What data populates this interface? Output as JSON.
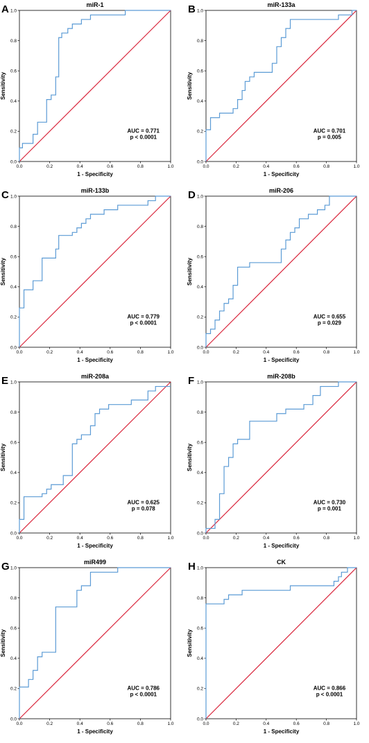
{
  "chart_data": [
    {
      "panel": "A",
      "type": "line",
      "title": "miR-1",
      "xlabel": "1 - Specificity",
      "ylabel": "Sensitivity",
      "xlim": [
        0,
        1
      ],
      "ylim": [
        0,
        1
      ],
      "xticks": [
        "0.0",
        "0.2",
        "0.4",
        "0.6",
        "0.8",
        "1.0"
      ],
      "yticks": [
        "0.0",
        "0.2",
        "0.4",
        "0.6",
        "0.8",
        "1.0"
      ],
      "annotations": [
        "AUC = 0.771",
        "p < 0.0001"
      ],
      "series": [
        {
          "color": "#5b9bd5",
          "x": [
            0,
            0,
            0.02,
            0.02,
            0.09,
            0.09,
            0.12,
            0.12,
            0.18,
            0.18,
            0.21,
            0.21,
            0.24,
            0.24,
            0.26,
            0.26,
            0.28,
            0.28,
            0.32,
            0.32,
            0.35,
            0.35,
            0.41,
            0.41,
            0.47,
            0.47,
            0.52,
            0.52,
            0.7,
            0.7,
            1.0
          ],
          "y": [
            0,
            0.09,
            0.09,
            0.12,
            0.12,
            0.18,
            0.18,
            0.26,
            0.26,
            0.41,
            0.41,
            0.44,
            0.44,
            0.56,
            0.56,
            0.82,
            0.82,
            0.85,
            0.85,
            0.88,
            0.88,
            0.91,
            0.91,
            0.94,
            0.94,
            0.97,
            0.97,
            0.97,
            0.97,
            1.0,
            1.0
          ]
        },
        {
          "color": "#d9263c",
          "x": [
            0,
            1
          ],
          "y": [
            0,
            1
          ]
        }
      ]
    },
    {
      "panel": "B",
      "type": "line",
      "title": "miR-133a",
      "xlabel": "1 - Specificity",
      "ylabel": "Sensitivity",
      "xlim": [
        0,
        1
      ],
      "ylim": [
        0,
        1
      ],
      "xticks": [
        "0.0",
        "0.2",
        "0.4",
        "0.6",
        "0.8",
        "1.0"
      ],
      "yticks": [
        "0.0",
        "0.2",
        "0.4",
        "0.6",
        "0.8",
        "1.0"
      ],
      "annotations": [
        "AUC = 0.701",
        "p = 0.005"
      ],
      "series": [
        {
          "color": "#5b9bd5",
          "x": [
            0,
            0,
            0.03,
            0.03,
            0.09,
            0.09,
            0.18,
            0.18,
            0.21,
            0.21,
            0.24,
            0.24,
            0.26,
            0.26,
            0.29,
            0.29,
            0.32,
            0.32,
            0.35,
            0.35,
            0.44,
            0.44,
            0.47,
            0.47,
            0.5,
            0.5,
            0.53,
            0.53,
            0.56,
            0.56,
            0.88,
            0.88,
            0.97,
            0.97,
            1.0
          ],
          "y": [
            0,
            0.21,
            0.21,
            0.29,
            0.29,
            0.32,
            0.32,
            0.35,
            0.35,
            0.41,
            0.41,
            0.47,
            0.47,
            0.53,
            0.53,
            0.56,
            0.56,
            0.59,
            0.59,
            0.59,
            0.59,
            0.65,
            0.65,
            0.76,
            0.76,
            0.82,
            0.82,
            0.88,
            0.88,
            0.94,
            0.94,
            0.97,
            0.97,
            1.0,
            1.0
          ]
        },
        {
          "color": "#d9263c",
          "x": [
            0,
            1
          ],
          "y": [
            0,
            1
          ]
        }
      ]
    },
    {
      "panel": "C",
      "type": "line",
      "title": "miR-133b",
      "xlabel": "1 - Specificity",
      "ylabel": "Sensitivity",
      "xlim": [
        0,
        1
      ],
      "ylim": [
        0,
        1
      ],
      "xticks": [
        "0.0",
        "0.2",
        "0.4",
        "0.6",
        "0.8",
        "1.0"
      ],
      "yticks": [
        "0.0",
        "0.2",
        "0.4",
        "0.6",
        "0.8",
        "1.0"
      ],
      "annotations": [
        "AUC = 0.779",
        "p < 0.0001"
      ],
      "series": [
        {
          "color": "#5b9bd5",
          "x": [
            0,
            0,
            0.03,
            0.03,
            0.09,
            0.09,
            0.15,
            0.15,
            0.24,
            0.24,
            0.26,
            0.26,
            0.35,
            0.35,
            0.38,
            0.38,
            0.41,
            0.41,
            0.44,
            0.44,
            0.47,
            0.47,
            0.5,
            0.5,
            0.56,
            0.56,
            0.65,
            0.65,
            0.85,
            0.85,
            0.9,
            0.9,
            1.0
          ],
          "y": [
            0,
            0.26,
            0.26,
            0.38,
            0.38,
            0.44,
            0.44,
            0.59,
            0.59,
            0.65,
            0.65,
            0.74,
            0.74,
            0.76,
            0.76,
            0.79,
            0.79,
            0.82,
            0.82,
            0.85,
            0.85,
            0.88,
            0.88,
            0.88,
            0.88,
            0.91,
            0.91,
            0.94,
            0.94,
            0.97,
            0.97,
            1.0,
            1.0
          ]
        },
        {
          "color": "#d9263c",
          "x": [
            0,
            1
          ],
          "y": [
            0,
            1
          ]
        }
      ]
    },
    {
      "panel": "D",
      "type": "line",
      "title": "miR-206",
      "xlabel": "1 - Specificity",
      "ylabel": "Sensitivity",
      "xlim": [
        0,
        1
      ],
      "ylim": [
        0,
        1
      ],
      "xticks": [
        "0.0",
        "0.2",
        "0.4",
        "0.6",
        "0.8",
        "1.0"
      ],
      "yticks": [
        "0.0",
        "0.2",
        "0.4",
        "0.6",
        "0.8",
        "1.0"
      ],
      "annotations": [
        "AUC = 0.655",
        "p = 0.029"
      ],
      "series": [
        {
          "color": "#5b9bd5",
          "x": [
            0,
            0,
            0.03,
            0.03,
            0.06,
            0.06,
            0.09,
            0.09,
            0.12,
            0.12,
            0.15,
            0.15,
            0.18,
            0.18,
            0.21,
            0.21,
            0.29,
            0.29,
            0.5,
            0.5,
            0.53,
            0.53,
            0.56,
            0.56,
            0.59,
            0.59,
            0.62,
            0.62,
            0.68,
            0.68,
            0.74,
            0.74,
            0.79,
            0.79,
            0.82,
            0.82,
            1.0
          ],
          "y": [
            0,
            0.09,
            0.09,
            0.12,
            0.12,
            0.18,
            0.18,
            0.24,
            0.24,
            0.29,
            0.29,
            0.32,
            0.32,
            0.41,
            0.41,
            0.53,
            0.53,
            0.56,
            0.56,
            0.65,
            0.65,
            0.71,
            0.71,
            0.76,
            0.76,
            0.79,
            0.79,
            0.85,
            0.85,
            0.88,
            0.88,
            0.91,
            0.91,
            0.94,
            0.94,
            1.0,
            1.0
          ]
        },
        {
          "color": "#d9263c",
          "x": [
            0,
            1
          ],
          "y": [
            0,
            1
          ]
        }
      ]
    },
    {
      "panel": "E",
      "type": "line",
      "title": "miR-208a",
      "xlabel": "1 - Specificity",
      "ylabel": "Sensitivity",
      "xlim": [
        0,
        1
      ],
      "ylim": [
        0,
        1
      ],
      "xticks": [
        "0.0",
        "0.2",
        "0.4",
        "0.6",
        "0.8",
        "1.0"
      ],
      "yticks": [
        "0.0",
        "0.2",
        "0.4",
        "0.6",
        "0.8",
        "1.0"
      ],
      "annotations": [
        "AUC = 0.625",
        "p = 0.078"
      ],
      "series": [
        {
          "color": "#5b9bd5",
          "x": [
            0,
            0,
            0.03,
            0.03,
            0.15,
            0.15,
            0.18,
            0.18,
            0.21,
            0.21,
            0.29,
            0.29,
            0.35,
            0.35,
            0.38,
            0.38,
            0.41,
            0.41,
            0.47,
            0.47,
            0.5,
            0.5,
            0.53,
            0.53,
            0.56,
            0.56,
            0.59,
            0.59,
            0.74,
            0.74,
            0.85,
            0.85,
            0.9,
            0.9,
            1.0
          ],
          "y": [
            0,
            0.09,
            0.09,
            0.24,
            0.24,
            0.26,
            0.26,
            0.29,
            0.29,
            0.32,
            0.32,
            0.38,
            0.38,
            0.59,
            0.59,
            0.62,
            0.62,
            0.65,
            0.65,
            0.71,
            0.71,
            0.79,
            0.79,
            0.82,
            0.82,
            0.82,
            0.82,
            0.85,
            0.85,
            0.88,
            0.88,
            0.94,
            0.94,
            0.97,
            0.97
          ]
        },
        {
          "color": "#d9263c",
          "x": [
            0,
            1
          ],
          "y": [
            0,
            1
          ]
        }
      ]
    },
    {
      "panel": "F",
      "type": "line",
      "title": "miR-208b",
      "xlabel": "1 - Specificity",
      "ylabel": "Sensitivity",
      "xlim": [
        0,
        1
      ],
      "ylim": [
        0,
        1
      ],
      "xticks": [
        "0.0",
        "0.2",
        "0.4",
        "0.6",
        "0.8",
        "1.0"
      ],
      "yticks": [
        "0.0",
        "0.2",
        "0.4",
        "0.6",
        "0.8",
        "1.0"
      ],
      "annotations": [
        "AUC = 0.730",
        "p = 0.001"
      ],
      "series": [
        {
          "color": "#5b9bd5",
          "x": [
            0,
            0,
            0.06,
            0.06,
            0.09,
            0.09,
            0.12,
            0.12,
            0.15,
            0.15,
            0.18,
            0.18,
            0.21,
            0.21,
            0.29,
            0.29,
            0.47,
            0.47,
            0.53,
            0.53,
            0.65,
            0.65,
            0.71,
            0.71,
            0.76,
            0.76,
            0.88,
            0.88,
            1.0
          ],
          "y": [
            0,
            0.03,
            0.03,
            0.09,
            0.09,
            0.26,
            0.26,
            0.44,
            0.44,
            0.5,
            0.5,
            0.59,
            0.59,
            0.62,
            0.62,
            0.74,
            0.74,
            0.79,
            0.79,
            0.82,
            0.82,
            0.85,
            0.85,
            0.91,
            0.91,
            0.97,
            0.97,
            1.0,
            1.0
          ]
        },
        {
          "color": "#d9263c",
          "x": [
            0,
            1
          ],
          "y": [
            0,
            1
          ]
        }
      ]
    },
    {
      "panel": "G",
      "type": "line",
      "title": "miR499",
      "xlabel": "1 - Specificity",
      "ylabel": "Sensitivity",
      "xlim": [
        0,
        1
      ],
      "ylim": [
        0,
        1
      ],
      "xticks": [
        "0.0",
        "0.2",
        "0.4",
        "0.6",
        "0.8",
        "1.0"
      ],
      "yticks": [
        "0.0",
        "0.2",
        "0.4",
        "0.6",
        "0.8",
        "1.0"
      ],
      "annotations": [
        "AUC = 0.786",
        "p < 0.0001"
      ],
      "series": [
        {
          "color": "#5b9bd5",
          "x": [
            0,
            0,
            0.06,
            0.06,
            0.09,
            0.09,
            0.12,
            0.12,
            0.15,
            0.15,
            0.24,
            0.24,
            0.38,
            0.38,
            0.41,
            0.41,
            0.47,
            0.47,
            0.65,
            0.65,
            1.0
          ],
          "y": [
            0,
            0.21,
            0.21,
            0.26,
            0.26,
            0.32,
            0.32,
            0.41,
            0.41,
            0.44,
            0.44,
            0.74,
            0.74,
            0.85,
            0.85,
            0.88,
            0.88,
            0.97,
            0.97,
            1.0,
            1.0
          ]
        },
        {
          "color": "#d9263c",
          "x": [
            0,
            1
          ],
          "y": [
            0,
            1
          ]
        }
      ]
    },
    {
      "panel": "H",
      "type": "line",
      "title": "CK",
      "xlabel": "1 - Specificity",
      "ylabel": "Sensitivity",
      "xlim": [
        0,
        1
      ],
      "ylim": [
        0,
        1
      ],
      "xticks": [
        "0.0",
        "0.2",
        "0.4",
        "0.6",
        "0.8",
        "1.0"
      ],
      "yticks": [
        "0.0",
        "0.2",
        "0.4",
        "0.6",
        "0.8",
        "1.0"
      ],
      "annotations": [
        "AUC = 0.866",
        "p < 0.0001"
      ],
      "series": [
        {
          "color": "#5b9bd5",
          "x": [
            0,
            0,
            0.12,
            0.12,
            0.15,
            0.15,
            0.24,
            0.24,
            0.56,
            0.56,
            0.85,
            0.85,
            0.88,
            0.88,
            0.9,
            0.9,
            0.94,
            0.94,
            1.0
          ],
          "y": [
            0,
            0.76,
            0.76,
            0.79,
            0.79,
            0.82,
            0.82,
            0.85,
            0.85,
            0.88,
            0.88,
            0.91,
            0.91,
            0.94,
            0.94,
            0.97,
            0.97,
            1.0,
            1.0
          ]
        },
        {
          "color": "#d9263c",
          "x": [
            0,
            1
          ],
          "y": [
            0,
            1
          ]
        }
      ]
    }
  ]
}
